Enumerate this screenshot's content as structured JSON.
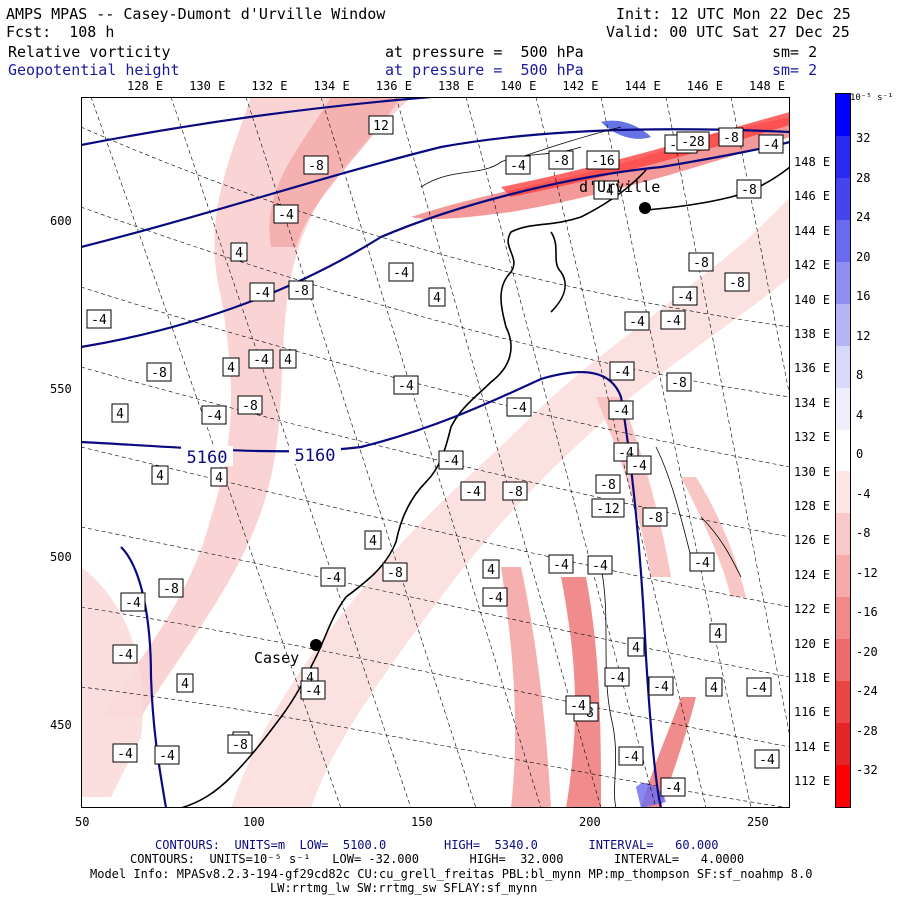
{
  "header": {
    "title": "AMPS MPAS -- Casey-Dumont d'Urville Window",
    "init": "Init: 12 UTC Mon 22 Dec 25",
    "fcst": "Fcst:  108 h",
    "valid": "Valid: 00 UTC Sat 27 Dec 25",
    "field1": {
      "name": "Relative vorticity",
      "pressure": "at pressure =  500 hPa",
      "sm": "sm= 2"
    },
    "field2": {
      "name": "Geopotential height",
      "pressure": "at pressure =  500 hPa",
      "sm": "sm= 2"
    }
  },
  "map": {
    "top_lon_labels": [
      "128 E",
      "130 E",
      "132 E",
      "134 E",
      "136 E",
      "138 E",
      "140 E",
      "142 E",
      "144 E",
      "146 E",
      "148 E"
    ],
    "right_lon_labels": [
      "148 E",
      "146 E",
      "144 E",
      "142 E",
      "140 E",
      "138 E",
      "136 E",
      "134 E",
      "132 E",
      "130 E",
      "128 E",
      "126 E",
      "124 E",
      "122 E",
      "120 E",
      "118 E",
      "116 E",
      "114 E",
      "112 E"
    ],
    "x_ticks": [
      "50",
      "100",
      "150",
      "200",
      "250"
    ],
    "y_ticks": [
      "600",
      "550",
      "500",
      "450"
    ],
    "stations": [
      {
        "name": "Casey",
        "color": "#000000"
      },
      {
        "name": "d'Urville",
        "color": "#000000"
      }
    ],
    "height_labels": [
      "5160",
      "5160"
    ],
    "vort_labels": [
      "12",
      "-8",
      "-4",
      "4",
      "-4",
      "-8",
      "-4",
      "4",
      "-4",
      "-8",
      "-4",
      "4",
      "4",
      "-8",
      "-4",
      "4",
      "-4",
      "-4",
      "-8",
      "-16",
      "-20",
      "-28",
      "-8",
      "-4",
      "-8",
      "-4",
      "-8",
      "-4",
      "-8",
      "-8",
      "-4",
      "-4",
      "-4",
      "-4",
      "-8",
      "-12",
      "-8",
      "-4",
      "-4",
      "-4",
      "-4",
      "-4",
      "-8",
      "-4",
      "4",
      "-4",
      "-4",
      "4",
      "-8",
      "-4",
      "4",
      "-4",
      "4",
      "-8",
      "-4",
      "-8",
      "-4",
      "-4",
      "4",
      "4",
      "4",
      "-4",
      "-4",
      "4",
      "4",
      "-4",
      "-4",
      "4",
      "-4",
      "-4",
      "-4",
      "-8",
      "-4",
      "-4"
    ]
  },
  "colorbar": {
    "unit": "10⁻⁵ s⁻¹",
    "labels": [
      "32",
      "28",
      "24",
      "20",
      "16",
      "12",
      "8",
      "4",
      "0",
      "-4",
      "-8",
      "-12",
      "-16",
      "-20",
      "-24",
      "-28",
      "-32"
    ],
    "colors": [
      "#0000ff",
      "#2a2af2",
      "#4545ee",
      "#6a6af0",
      "#8f8ff2",
      "#b5b5f6",
      "#d8d8fa",
      "#eeeefd",
      "#ffffff",
      "#fde6e6",
      "#f9c8c8",
      "#f6aaaa",
      "#f28a8a",
      "#ef6a6a",
      "#ea4545",
      "#e52525",
      "#ff0000"
    ]
  },
  "footer": {
    "line1": "CONTOURS:  UNITS=m  LOW=  5100.0        HIGH=  5340.0       INTERVAL=   60.000",
    "line2": "CONTOURS:  UNITS=10⁻⁵ s⁻¹   LOW= -32.000       HIGH=  32.000       INTERVAL=   4.0000",
    "line3": "Model Info: MPASv8.2.3-194-gf29cd82c CU:cu_grell_freitas PBL:bl_mynn MP:mp_thompson SF:sf_noahmp 8.0",
    "line4": "LW:rrtmg_lw SW:rrtmg_sw SFLAY:sf_mynn"
  }
}
